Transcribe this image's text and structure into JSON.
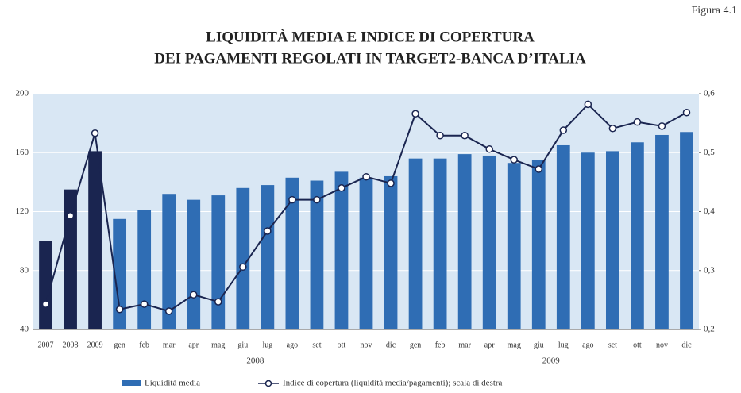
{
  "chart_data": {
    "type": "bar_line",
    "figure_label": "Figura 4.1",
    "title": [
      "LIQUIDITÀ MEDIA E INDICE DI COPERTURA",
      "DEI PAGAMENTI REGOLATI IN TARGET2-BANCA D’ITALIA"
    ],
    "categories": [
      "2007",
      "2008",
      "2009",
      "gen",
      "feb",
      "mar",
      "apr",
      "mag",
      "giu",
      "lug",
      "ago",
      "set",
      "ott",
      "nov",
      "dic",
      "gen",
      "feb",
      "mar",
      "apr",
      "mag",
      "giu",
      "lug",
      "ago",
      "set",
      "ott",
      "nov",
      "dic"
    ],
    "x_groups": [
      {
        "label": "2008",
        "first": 3,
        "count": 12
      },
      {
        "label": "2009",
        "first": 15,
        "count": 12
      }
    ],
    "series": [
      {
        "name": "Liquidità media",
        "color": "#2f6db4",
        "axis": "y",
        "bar_colors": [
          "#1a2550",
          "#1a2550",
          "#1a2550",
          "#2f6db4",
          "#2f6db4",
          "#2f6db4",
          "#2f6db4",
          "#2f6db4",
          "#2f6db4",
          "#2f6db4",
          "#2f6db4",
          "#2f6db4",
          "#2f6db4",
          "#2f6db4",
          "#2f6db4",
          "#2f6db4",
          "#2f6db4",
          "#2f6db4",
          "#2f6db4",
          "#2f6db4",
          "#2f6db4",
          "#2f6db4",
          "#2f6db4",
          "#2f6db4",
          "#2f6db4",
          "#2f6db4",
          "#2f6db4"
        ],
        "values": [
          100,
          135,
          161,
          115,
          121,
          132,
          128,
          131,
          136,
          138,
          143,
          141,
          147,
          143,
          144,
          156,
          156,
          159,
          158,
          153,
          155,
          165,
          160,
          161,
          167,
          172,
          174
        ]
      },
      {
        "name": "Indice di copertura (liquidità media/pagamenti); scala di destra",
        "color": "#1a2550",
        "axis": "y2",
        "values": [
          0.243,
          0.393,
          0.533,
          0.234,
          0.243,
          0.231,
          0.259,
          0.247,
          0.306,
          0.367,
          0.42,
          0.42,
          0.44,
          0.459,
          0.448,
          0.566,
          0.529,
          0.529,
          0.506,
          0.488,
          0.472,
          0.538,
          0.582,
          0.541,
          0.552,
          0.545,
          0.568
        ]
      }
    ],
    "ylim": [
      40,
      200
    ],
    "yticks": [
      40,
      80,
      120,
      160,
      200
    ],
    "y2lim": [
      0.2,
      0.6
    ],
    "y2ticks": [
      {
        "value": 0.2,
        "label": "0,2"
      },
      {
        "value": 0.3,
        "label": "0,3"
      },
      {
        "value": 0.4,
        "label": "0,4"
      },
      {
        "value": 0.5,
        "label": "0,5"
      },
      {
        "value": 0.6,
        "label": "0,6"
      }
    ],
    "grid": true,
    "plot_background": "#d9e7f4"
  }
}
